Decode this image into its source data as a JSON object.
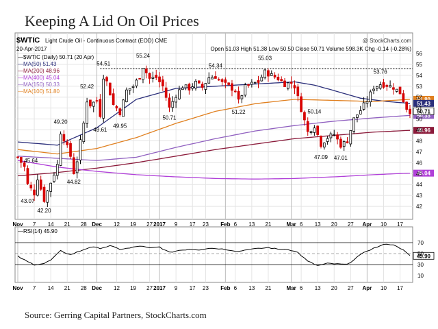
{
  "title": "Keeping A Lid On Oil Prices",
  "source": "Source: Gerring Capital Partners, StockCharts.com",
  "chart_data": {
    "type": "candlestick",
    "header": {
      "symbol": "$WTIC",
      "description": "Light Crude Oil - Continuous Contract (EOD)",
      "exchange": "CME",
      "watermark": "@ StockCharts.com",
      "date": "20-Apr-2017",
      "ohlc_line": "Open 51.03  High 51.38  Low 50.50  Close 50.71  Volume 598.3K  Chg -0.14 (-0.28%)",
      "legend_title": "$WTIC (Daily) 50.71 (20 Apr)"
    },
    "legend": [
      {
        "label": "MA(50) 51.43",
        "color": "#2b2f7a"
      },
      {
        "label": "MA(200) 48.96",
        "color": "#8b1a3a"
      },
      {
        "label": "MA(400) 45.04",
        "color": "#b040d8"
      },
      {
        "label": "MA(150) 50.33",
        "color": "#9060c0"
      },
      {
        "label": "MA(100) 51.80",
        "color": "#e08020"
      }
    ],
    "price_ylim": [
      41,
      56
    ],
    "price_ticks": [
      42,
      43,
      44,
      45,
      46,
      47,
      48,
      49,
      50,
      51,
      52,
      53,
      54,
      55,
      56
    ],
    "right_labels": [
      {
        "text": "51.80",
        "value": 51.8,
        "bg": "#e08020"
      },
      {
        "text": "51.43",
        "value": 51.43,
        "bg": "#2b2f7a"
      },
      {
        "text": "50.33",
        "value": 50.33,
        "bg": "#9060c0"
      },
      {
        "text": "50.71",
        "value": 50.71,
        "bg": "#ffffff"
      },
      {
        "text": "48.96",
        "value": 48.96,
        "bg": "#8b1a3a"
      },
      {
        "text": "45.04",
        "value": 45.04,
        "bg": "#b040d8"
      }
    ],
    "resistance_level": 54.6,
    "x_ticks": [
      {
        "label": "Nov",
        "i": 0,
        "bold": true
      },
      {
        "label": "7",
        "i": 5
      },
      {
        "label": "14",
        "i": 10
      },
      {
        "label": "21",
        "i": 15
      },
      {
        "label": "28",
        "i": 20
      },
      {
        "label": "Dec",
        "i": 24,
        "bold": true
      },
      {
        "label": "12",
        "i": 30
      },
      {
        "label": "19",
        "i": 35
      },
      {
        "label": "27",
        "i": 40
      },
      {
        "label": "2017",
        "i": 43,
        "bold": true
      },
      {
        "label": "9",
        "i": 48
      },
      {
        "label": "17",
        "i": 53
      },
      {
        "label": "23",
        "i": 57
      },
      {
        "label": "Feb",
        "i": 63,
        "bold": true
      },
      {
        "label": "6",
        "i": 66
      },
      {
        "label": "13",
        "i": 71
      },
      {
        "label": "21",
        "i": 76
      },
      {
        "label": "Mar",
        "i": 83,
        "bold": true
      },
      {
        "label": "6",
        "i": 86
      },
      {
        "label": "13",
        "i": 91
      },
      {
        "label": "20",
        "i": 96
      },
      {
        "label": "27",
        "i": 101
      },
      {
        "label": "Apr",
        "i": 106,
        "bold": true
      },
      {
        "label": "10",
        "i": 111
      },
      {
        "label": "17",
        "i": 116
      }
    ],
    "annotations": [
      {
        "text": "45.64",
        "i": 4,
        "value": 45.64,
        "pos": "above"
      },
      {
        "text": "43.07",
        "i": 3,
        "value": 43.07,
        "pos": "below"
      },
      {
        "text": "42.20",
        "i": 8,
        "value": 42.2,
        "pos": "below"
      },
      {
        "text": "44.82",
        "i": 17,
        "value": 44.82,
        "pos": "below"
      },
      {
        "text": "49.20",
        "i": 13,
        "value": 49.2,
        "pos": "above"
      },
      {
        "text": "52.42",
        "i": 21,
        "value": 52.42,
        "pos": "above"
      },
      {
        "text": "54.51",
        "i": 26,
        "value": 54.51,
        "pos": "above"
      },
      {
        "text": "49.61",
        "i": 25,
        "value": 49.61,
        "pos": "below"
      },
      {
        "text": "49.95",
        "i": 31,
        "value": 49.95,
        "pos": "below"
      },
      {
        "text": "55.24",
        "i": 38,
        "value": 55.24,
        "pos": "above"
      },
      {
        "text": "50.71",
        "i": 46,
        "value": 50.71,
        "pos": "below"
      },
      {
        "text": "54.34",
        "i": 60,
        "value": 54.34,
        "pos": "above"
      },
      {
        "text": "51.22",
        "i": 67,
        "value": 51.22,
        "pos": "below"
      },
      {
        "text": "55.03",
        "i": 75,
        "value": 55.03,
        "pos": "above"
      },
      {
        "text": "50.14",
        "i": 90,
        "value": 50.14,
        "pos": "above"
      },
      {
        "text": "47.09",
        "i": 92,
        "value": 47.09,
        "pos": "below"
      },
      {
        "text": "47.01",
        "i": 98,
        "value": 47.01,
        "pos": "below"
      },
      {
        "text": "53.76",
        "i": 110,
        "value": 53.76,
        "pos": "above"
      }
    ],
    "anchors": [
      [
        0,
        46.5
      ],
      [
        2,
        45.6
      ],
      [
        3,
        44.0
      ],
      [
        5,
        43.2
      ],
      [
        6,
        44.6
      ],
      [
        8,
        42.6
      ],
      [
        10,
        44.2
      ],
      [
        12,
        45.8
      ],
      [
        13,
        48.8
      ],
      [
        14,
        48.2
      ],
      [
        16,
        46.6
      ],
      [
        17,
        45.1
      ],
      [
        18,
        46.2
      ],
      [
        20,
        49.6
      ],
      [
        21,
        51.7
      ],
      [
        22,
        51.3
      ],
      [
        24,
        51.7
      ],
      [
        25,
        50.4
      ],
      [
        26,
        53.9
      ],
      [
        27,
        53.4
      ],
      [
        29,
        51.3
      ],
      [
        30,
        51.0
      ],
      [
        31,
        50.6
      ],
      [
        33,
        52.6
      ],
      [
        35,
        53.0
      ],
      [
        37,
        53.9
      ],
      [
        38,
        54.8
      ],
      [
        40,
        53.7
      ],
      [
        42,
        53.8
      ],
      [
        44,
        53.0
      ],
      [
        46,
        51.0
      ],
      [
        48,
        52.2
      ],
      [
        50,
        53.0
      ],
      [
        52,
        52.8
      ],
      [
        54,
        53.3
      ],
      [
        56,
        52.9
      ],
      [
        58,
        53.8
      ],
      [
        60,
        53.9
      ],
      [
        62,
        53.3
      ],
      [
        64,
        53.0
      ],
      [
        66,
        52.6
      ],
      [
        67,
        51.6
      ],
      [
        69,
        52.9
      ],
      [
        71,
        53.2
      ],
      [
        73,
        53.4
      ],
      [
        75,
        54.3
      ],
      [
        77,
        54.0
      ],
      [
        79,
        53.7
      ],
      [
        81,
        53.2
      ],
      [
        83,
        53.3
      ],
      [
        84,
        53.0
      ],
      [
        86,
        50.9
      ],
      [
        88,
        48.8
      ],
      [
        90,
        49.4
      ],
      [
        92,
        47.7
      ],
      [
        94,
        48.3
      ],
      [
        96,
        48.6
      ],
      [
        98,
        47.6
      ],
      [
        100,
        48.0
      ],
      [
        102,
        50.0
      ],
      [
        104,
        50.8
      ],
      [
        106,
        51.7
      ],
      [
        108,
        52.9
      ],
      [
        110,
        53.2
      ],
      [
        112,
        53.1
      ],
      [
        114,
        52.9
      ],
      [
        116,
        52.4
      ],
      [
        118,
        51.0
      ],
      [
        119,
        50.71
      ]
    ],
    "moving_averages": [
      {
        "name": "MA(50)",
        "color": "#2b2f7a",
        "points": [
          [
            0,
            47.9
          ],
          [
            12,
            47.6
          ],
          [
            24,
            49.2
          ],
          [
            36,
            51.8
          ],
          [
            48,
            52.8
          ],
          [
            60,
            53.0
          ],
          [
            72,
            53.2
          ],
          [
            84,
            53.4
          ],
          [
            90,
            53.1
          ],
          [
            96,
            52.6
          ],
          [
            104,
            51.9
          ],
          [
            112,
            51.6
          ],
          [
            119,
            51.43
          ]
        ]
      },
      {
        "name": "MA(100)",
        "color": "#e08020",
        "points": [
          [
            0,
            47.2
          ],
          [
            12,
            46.8
          ],
          [
            24,
            47.3
          ],
          [
            36,
            48.3
          ],
          [
            48,
            49.6
          ],
          [
            60,
            50.7
          ],
          [
            72,
            51.4
          ],
          [
            84,
            51.8
          ],
          [
            96,
            51.7
          ],
          [
            108,
            51.6
          ],
          [
            119,
            51.8
          ]
        ]
      },
      {
        "name": "MA(150)",
        "color": "#9060c0",
        "points": [
          [
            0,
            46.6
          ],
          [
            24,
            46.2
          ],
          [
            36,
            46.5
          ],
          [
            48,
            47.4
          ],
          [
            60,
            48.2
          ],
          [
            72,
            48.9
          ],
          [
            84,
            49.4
          ],
          [
            96,
            49.8
          ],
          [
            108,
            50.1
          ],
          [
            119,
            50.33
          ]
        ]
      },
      {
        "name": "MA(200)",
        "color": "#8b1a3a",
        "points": [
          [
            0,
            44.8
          ],
          [
            12,
            45.1
          ],
          [
            24,
            45.5
          ],
          [
            36,
            46.0
          ],
          [
            48,
            46.6
          ],
          [
            60,
            47.2
          ],
          [
            72,
            47.7
          ],
          [
            84,
            48.2
          ],
          [
            96,
            48.5
          ],
          [
            108,
            48.8
          ],
          [
            119,
            48.96
          ]
        ]
      },
      {
        "name": "MA(400)",
        "color": "#b040d8",
        "points": [
          [
            0,
            46.2
          ],
          [
            12,
            45.6
          ],
          [
            24,
            45.2
          ],
          [
            36,
            44.9
          ],
          [
            48,
            44.7
          ],
          [
            60,
            44.55
          ],
          [
            72,
            44.5
          ],
          [
            84,
            44.55
          ],
          [
            96,
            44.7
          ],
          [
            108,
            44.9
          ],
          [
            119,
            45.04
          ]
        ]
      }
    ],
    "rsi": {
      "label": "RSI(14) 45.90",
      "ylim": [
        0,
        90
      ],
      "ticks": [
        10,
        30,
        50,
        70
      ],
      "levels": [
        30,
        70
      ],
      "last_label": "45.90",
      "last_value": 45.9,
      "points": [
        [
          0,
          45
        ],
        [
          3,
          35
        ],
        [
          5,
          30
        ],
        [
          8,
          32
        ],
        [
          10,
          38
        ],
        [
          13,
          55
        ],
        [
          16,
          48
        ],
        [
          19,
          55
        ],
        [
          22,
          62
        ],
        [
          25,
          60
        ],
        [
          28,
          64
        ],
        [
          31,
          58
        ],
        [
          34,
          60
        ],
        [
          37,
          64
        ],
        [
          40,
          60
        ],
        [
          43,
          62
        ],
        [
          46,
          52
        ],
        [
          49,
          56
        ],
        [
          52,
          58
        ],
        [
          55,
          57
        ],
        [
          58,
          60
        ],
        [
          61,
          59
        ],
        [
          64,
          57
        ],
        [
          67,
          54
        ],
        [
          70,
          58
        ],
        [
          73,
          59
        ],
        [
          76,
          61
        ],
        [
          79,
          58
        ],
        [
          82,
          58
        ],
        [
          85,
          52
        ],
        [
          88,
          36
        ],
        [
          91,
          28
        ],
        [
          94,
          32
        ],
        [
          97,
          31
        ],
        [
          100,
          30
        ],
        [
          103,
          44
        ],
        [
          106,
          55
        ],
        [
          109,
          62
        ],
        [
          112,
          68
        ],
        [
          115,
          64
        ],
        [
          117,
          56
        ],
        [
          119,
          45.9
        ]
      ]
    }
  }
}
